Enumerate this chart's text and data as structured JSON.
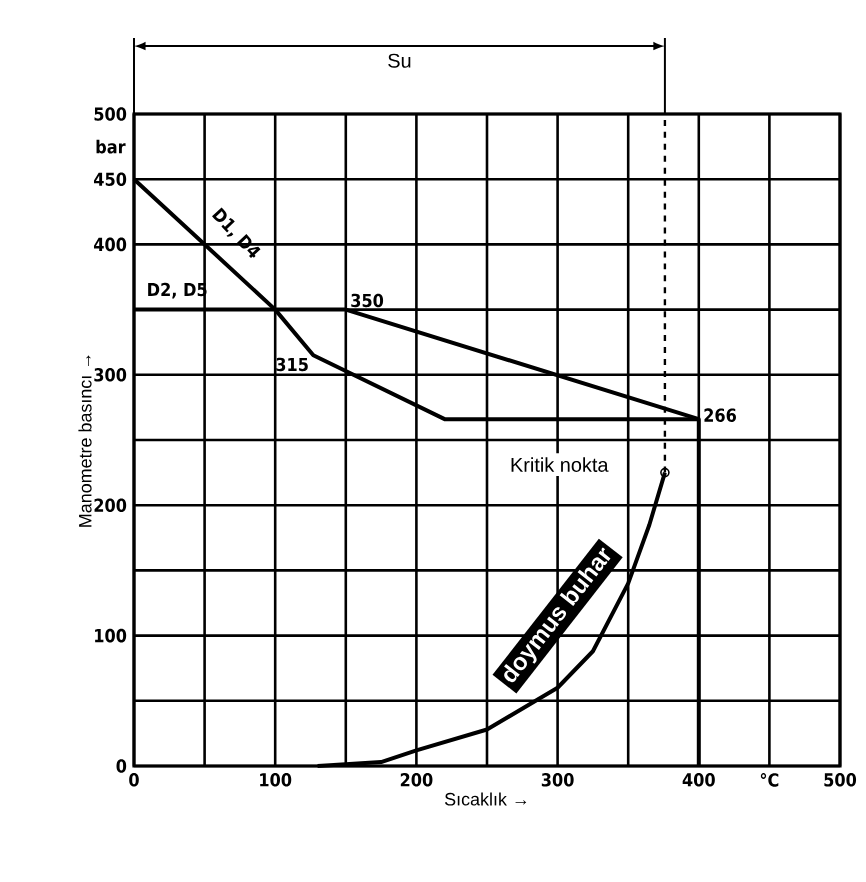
{
  "chart_data": {
    "type": "line",
    "xlabel": "Sıcaklık →",
    "ylabel": "Manometre basıncı →",
    "xlim": [
      0,
      500
    ],
    "ylim": [
      0,
      500
    ],
    "xticks": [
      0,
      {
        "value": 50,
        "label": null
      },
      100,
      {
        "value": 150,
        "label": null
      },
      200,
      {
        "value": 250,
        "label": null
      },
      300,
      {
        "value": 350,
        "label": null
      },
      400,
      {
        "value": 450,
        "label": "°C"
      },
      500
    ],
    "yticks": [
      0,
      {
        "value": 50,
        "label": null
      },
      100,
      {
        "value": 150,
        "label": null
      },
      200,
      {
        "value": 250,
        "label": null
      },
      300,
      {
        "value": 350,
        "label": null
      },
      400,
      450,
      500
    ],
    "grid": true,
    "series": [
      {
        "name": "D1, D4",
        "color": "#000000",
        "x": [
          0,
          100,
          127,
          220,
          400,
          400
        ],
        "values": [
          450,
          350,
          315,
          266,
          266,
          0
        ]
      },
      {
        "name": "D2, D5",
        "color": "#000000",
        "x": [
          0,
          150,
          400
        ],
        "values": [
          350,
          350,
          266
        ]
      },
      {
        "name": "doymus buhar",
        "color": "#000000",
        "x": [
          130,
          175,
          200,
          250,
          300,
          325,
          350,
          365,
          376
        ],
        "values": [
          0,
          3,
          12,
          28,
          60,
          88,
          140,
          185,
          225
        ]
      }
    ],
    "ref_lines": [
      {
        "axis": "x",
        "value": 376,
        "line_style": "dashed",
        "color": "#000000"
      }
    ],
    "annotations": [
      "Su",
      "bar",
      {
        "text": "350",
        "x": 150,
        "y": 350
      },
      {
        "text": "315",
        "x": 127,
        "y": 315
      },
      {
        "text": "266",
        "x": 400,
        "y": 266
      },
      {
        "text": "Kritik nokta",
        "x": 376,
        "y": 225
      }
    ]
  }
}
